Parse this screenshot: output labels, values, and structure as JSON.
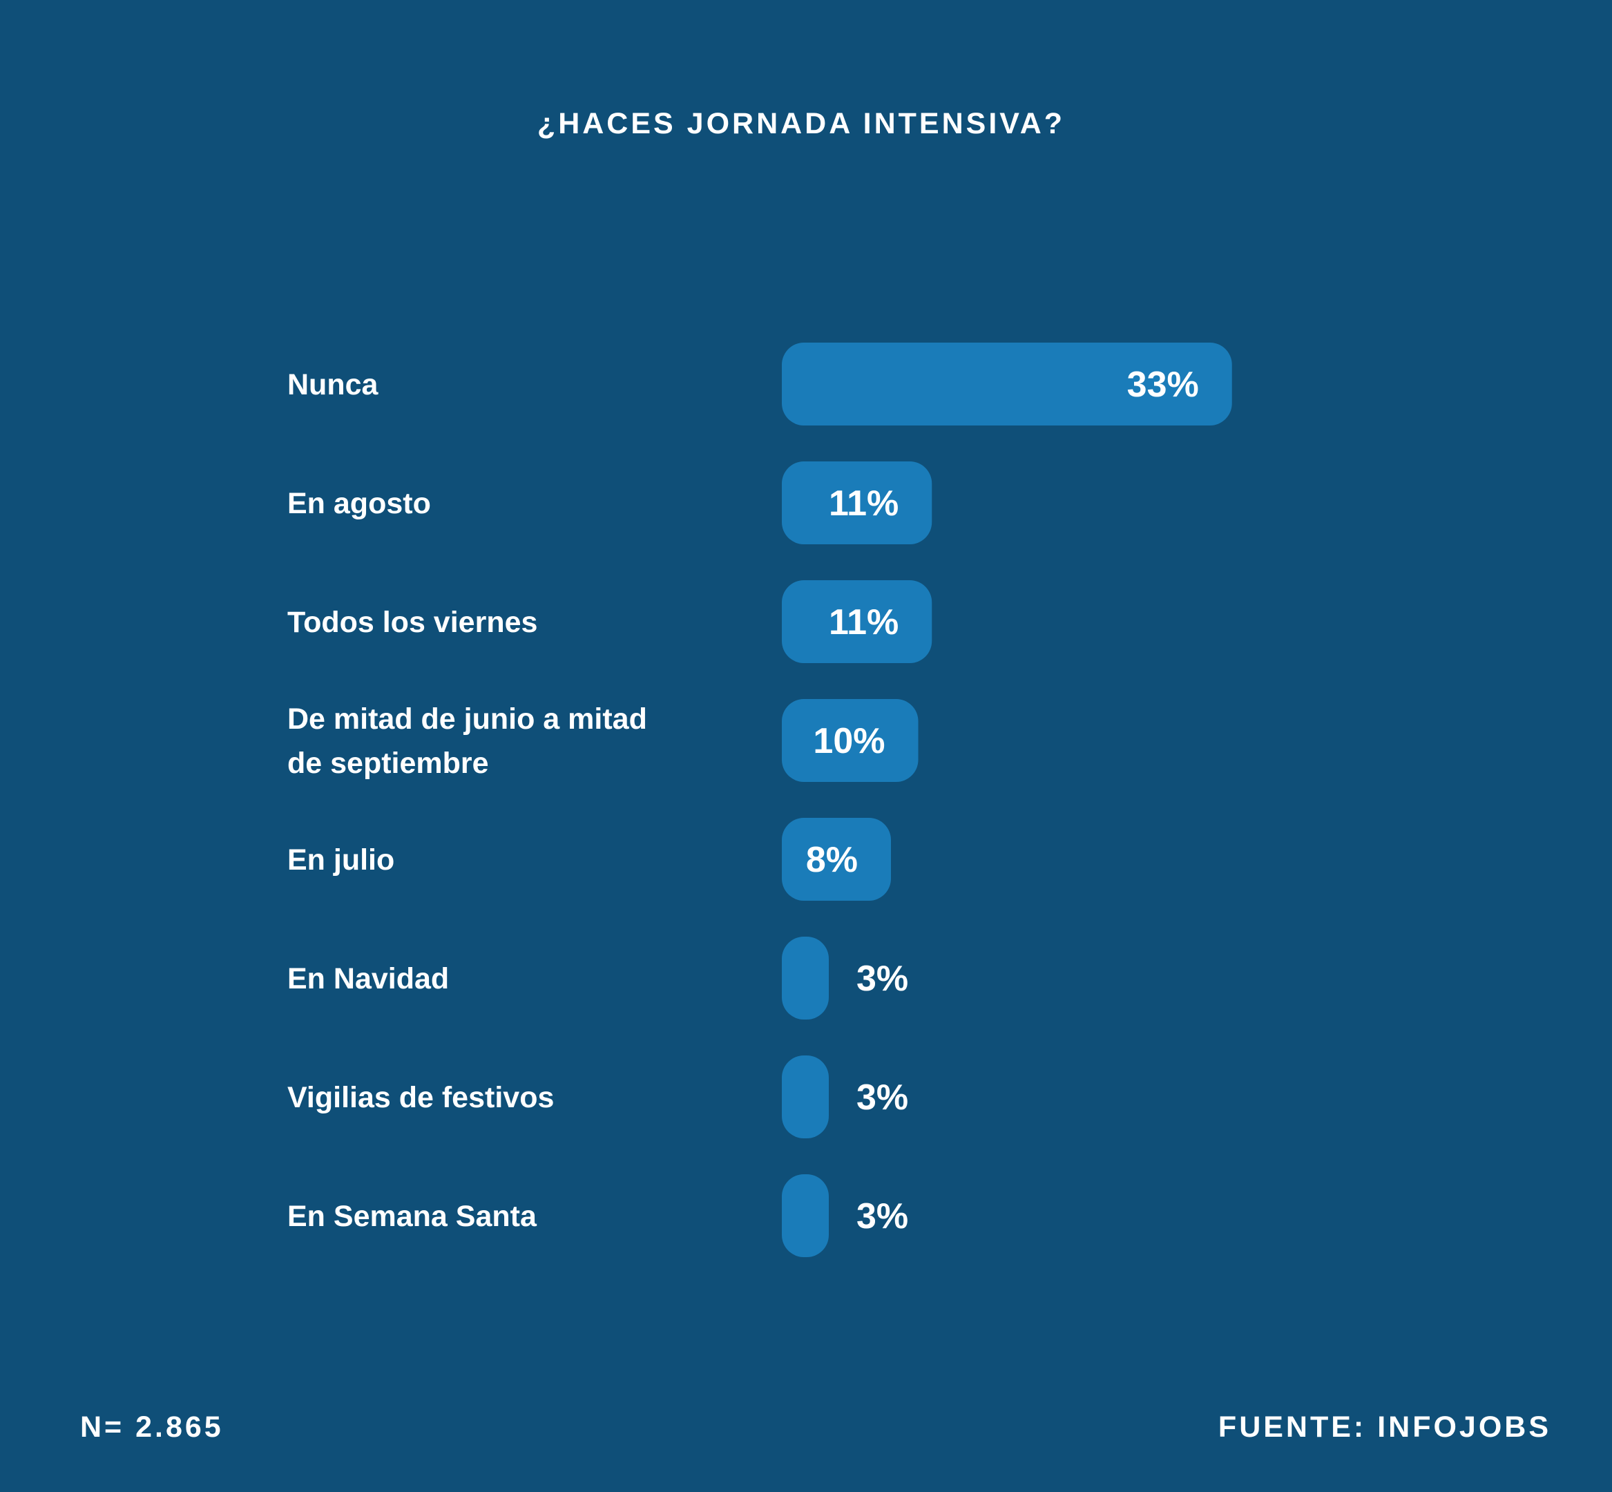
{
  "colors": {
    "background": "#0f4f78",
    "bar": "#1a7cb9",
    "text": "#ffffff"
  },
  "chart_data": {
    "type": "bar",
    "orientation": "horizontal",
    "title": "¿HACES JORNADA INTENSIVA?",
    "categories": [
      "Nunca",
      "En agosto",
      "Todos los viernes",
      "De mitad de junio a mitad de septiembre",
      "En julio",
      "En Navidad",
      "Vigilias de festivos",
      "En Semana Santa"
    ],
    "category_label_lines": [
      [
        "Nunca"
      ],
      [
        "En agosto"
      ],
      [
        "Todos los viernes"
      ],
      [
        "De mitad de junio a mitad",
        "de septiembre"
      ],
      [
        "En julio"
      ],
      [
        "En Navidad"
      ],
      [
        "Vigilias de festivos"
      ],
      [
        "En Semana Santa"
      ]
    ],
    "values": [
      33,
      11,
      11,
      10,
      8,
      3,
      3,
      3
    ],
    "value_labels": [
      "33%",
      "11%",
      "11%",
      "10%",
      "8%",
      "3%",
      "3%",
      "3%"
    ],
    "unit": "%",
    "grid": false,
    "legend": "none"
  },
  "footer": {
    "sample": "N= 2.865",
    "source": "FUENTE: INFOJOBS"
  }
}
